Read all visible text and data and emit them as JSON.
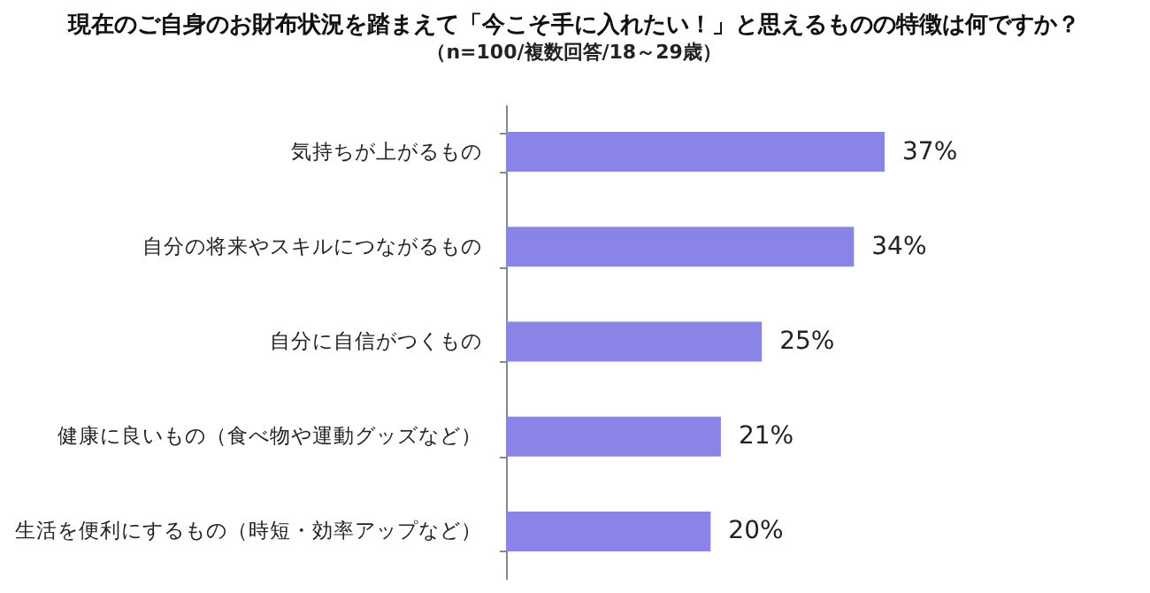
{
  "chart_data": {
    "type": "bar",
    "orientation": "horizontal",
    "title": "現在のご自身のお財布状況を踏まえて「今こそ手に入れたい！」と思えるものの特徴は何ですか？",
    "subtitle": "（n=100/複数回答/18～29歳）",
    "categories": [
      "気持ちが上がるもの",
      "自分の将来やスキルにつながるもの",
      "自分に自信がつくもの",
      "健康に良いもの（食べ物や運動グッズなど）",
      "生活を便利にするもの（時短・効率アップなど）"
    ],
    "values": [
      37,
      34,
      25,
      21,
      20
    ],
    "value_labels": [
      "37%",
      "34%",
      "25%",
      "21%",
      "20%"
    ],
    "color": "#8a84e6"
  }
}
